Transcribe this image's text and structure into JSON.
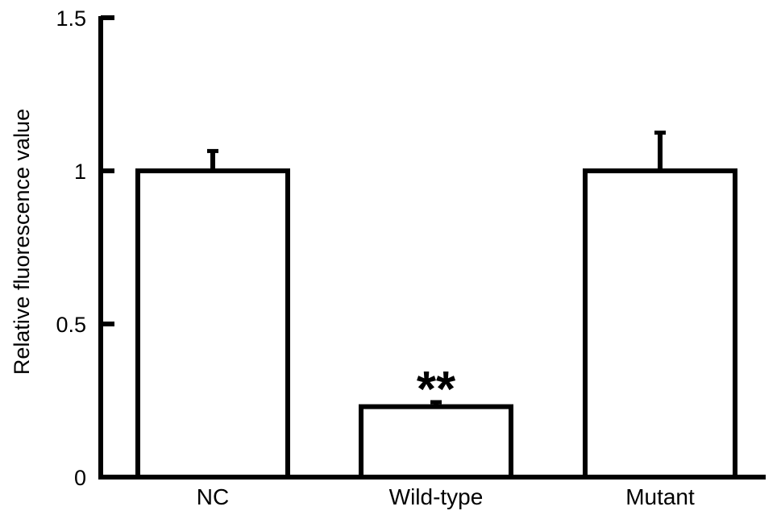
{
  "chart_data": {
    "type": "bar",
    "title": "",
    "xlabel": "",
    "ylabel": "Relative fluorescence value",
    "ylim": [
      0,
      1.5
    ],
    "yticks": [
      {
        "value": 0,
        "label": "0"
      },
      {
        "value": 0.5,
        "label": "0.5"
      },
      {
        "value": 1,
        "label": "1"
      },
      {
        "value": 1.5,
        "label": "1.5"
      }
    ],
    "categories": [
      "NC",
      "Wild-type",
      "Mutant"
    ],
    "values": [
      1.0,
      0.23,
      1.0
    ],
    "error_bars": [
      0.07,
      0.02,
      0.13
    ],
    "annotations": [
      {
        "category": "Wild-type",
        "text": "**"
      }
    ],
    "grid": false,
    "legend": "none",
    "colors": {
      "bar_fill": "#ffffff",
      "bar_stroke": "#000000",
      "axis": "#000000"
    }
  }
}
